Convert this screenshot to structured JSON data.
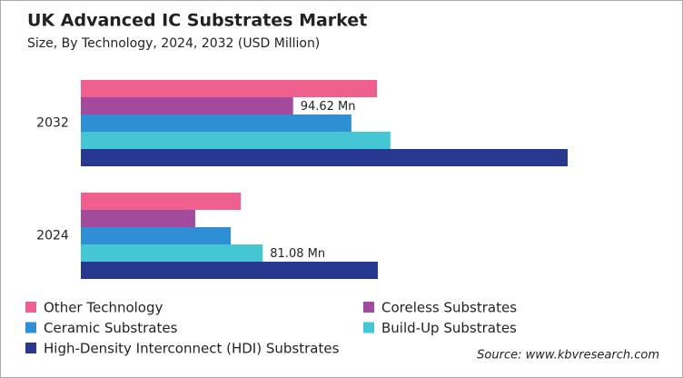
{
  "chart_data": {
    "type": "bar",
    "orientation": "horizontal",
    "title": "UK Advanced IC Substrates Market",
    "subtitle": "Size, By Technology, 2024, 2032 (USD Million)",
    "categories": [
      "2032",
      "2024"
    ],
    "series": [
      {
        "name": "Other Technology",
        "color": "#f0608e",
        "values": [
          132,
          71.3
        ]
      },
      {
        "name": "Coreless Substrates",
        "color": "#a24a9c",
        "values": [
          94.62,
          51
        ],
        "value_labels": [
          "94.62 Mn",
          null
        ]
      },
      {
        "name": "Ceramic Substrates",
        "color": "#2e8fd4",
        "values": [
          120.6,
          66.8
        ]
      },
      {
        "name": "Build-Up Substrates",
        "color": "#45c6d4",
        "values": [
          138,
          81.08
        ],
        "value_labels": [
          null,
          "81.08 Mn"
        ]
      },
      {
        "name": "High-Density Interconnect (HDI) Substrates",
        "color": "#283891",
        "values": [
          217,
          132.4
        ]
      }
    ],
    "source": "Source: www.kbvresearch.com"
  }
}
